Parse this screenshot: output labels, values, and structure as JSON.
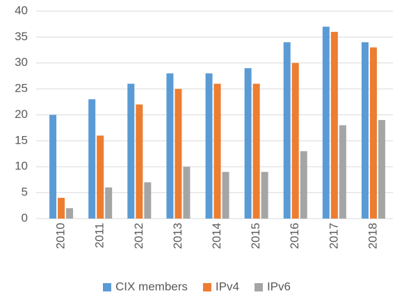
{
  "chart_data": {
    "type": "bar",
    "categories": [
      "2010",
      "2011",
      "2012",
      "2013",
      "2014",
      "2015",
      "2016",
      "2017",
      "2018"
    ],
    "series": [
      {
        "name": "CIX members",
        "color": "#5b9bd5",
        "values": [
          20,
          23,
          26,
          28,
          28,
          29,
          34,
          37,
          34
        ]
      },
      {
        "name": "IPv4",
        "color": "#ed7d31",
        "values": [
          4,
          16,
          22,
          25,
          26,
          26,
          30,
          36,
          33
        ]
      },
      {
        "name": "IPv6",
        "color": "#a5a5a5",
        "values": [
          2,
          6,
          7,
          10,
          9,
          9,
          13,
          18,
          19
        ]
      }
    ],
    "ylim": [
      0,
      40
    ],
    "yticks": [
      0,
      5,
      10,
      15,
      20,
      25,
      30,
      35,
      40
    ],
    "grid": true,
    "legend": "bottom"
  }
}
